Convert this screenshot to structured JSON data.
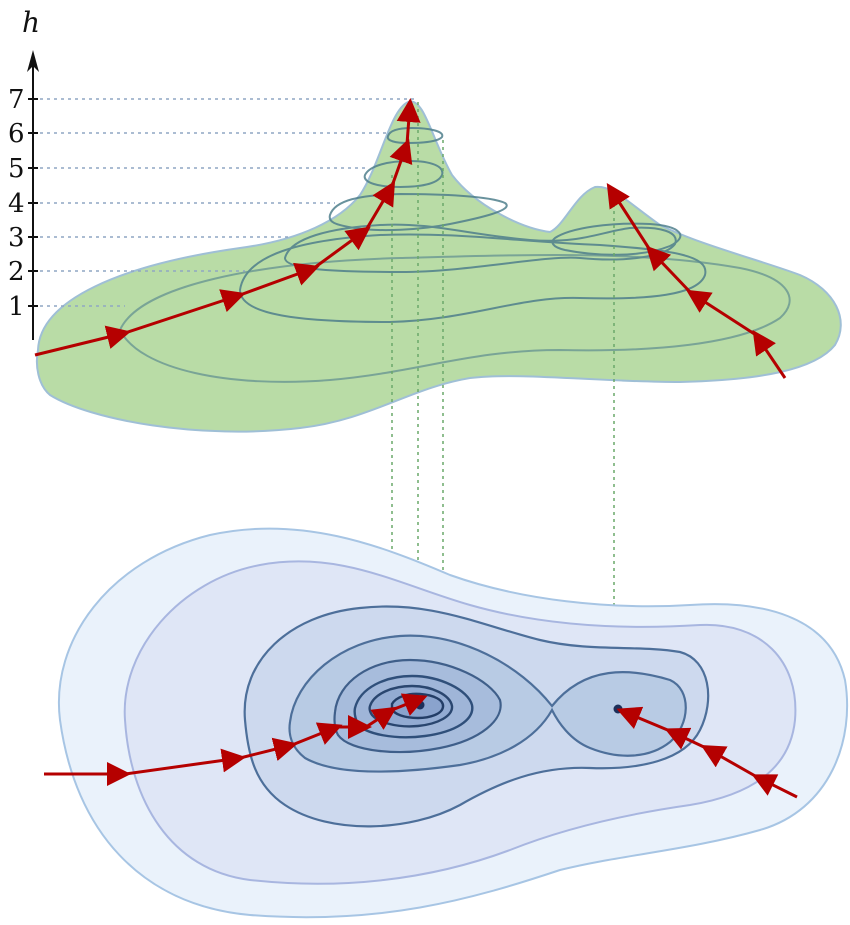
{
  "axis": {
    "name": "h",
    "ticks": [
      "1",
      "2",
      "3",
      "4",
      "5",
      "6",
      "7"
    ]
  },
  "colors": {
    "surface_fill": "#b9dca6",
    "surface_edge": "#9fbfd6",
    "contour_line": "#4f7f8c",
    "guide_line": "#8fa6c4",
    "drop_line": "#6aa86a",
    "path_arrow": "#b50000",
    "map_level_1": "#eaf2fb",
    "map_level_2": "#dfe6f6",
    "map_level_3": "#cdd9ee",
    "map_level_4": "#b8cbe4",
    "map_level_5": "#a7bcdc",
    "map_outline": "#4d6f9a",
    "minimum_point": "#1d2f5a"
  }
}
